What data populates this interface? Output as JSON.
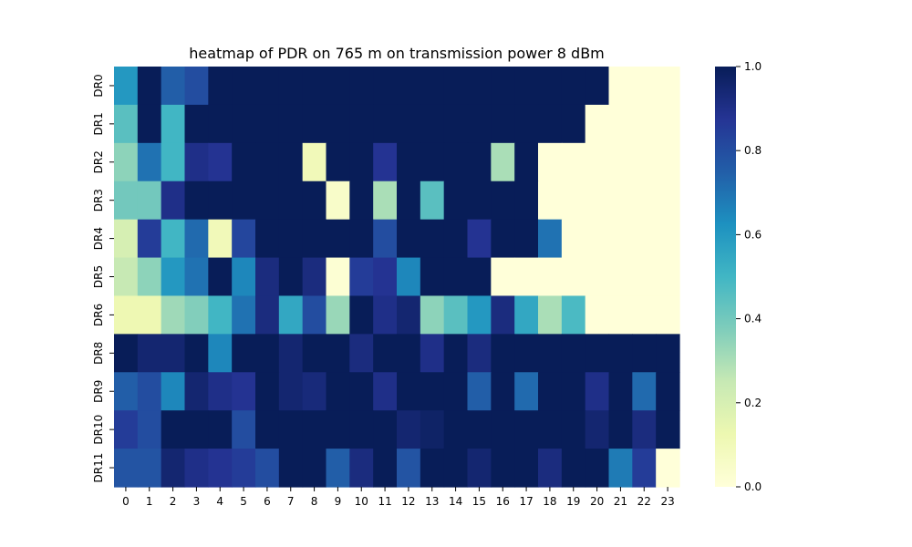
{
  "chart_data": {
    "type": "heatmap",
    "title": "heatmap of PDR on 765 m on transmission power 8 dBm",
    "xlabel": "",
    "ylabel": "",
    "x": [
      0,
      1,
      2,
      3,
      4,
      5,
      6,
      7,
      8,
      9,
      10,
      11,
      12,
      13,
      14,
      15,
      16,
      17,
      18,
      19,
      20,
      21,
      22,
      23
    ],
    "y": [
      "DR0",
      "DR1",
      "DR2",
      "DR3",
      "DR4",
      "DR5",
      "DR6",
      "DR8",
      "DR9",
      "DR10",
      "DR11"
    ],
    "values": [
      [
        0.6,
        1.0,
        0.75,
        0.8,
        1.0,
        1.0,
        1.0,
        1.0,
        1.0,
        1.0,
        1.0,
        1.0,
        1.0,
        1.0,
        1.0,
        1.0,
        1.0,
        1.0,
        1.0,
        1.0,
        1.0,
        0.0,
        0.0,
        0.0
      ],
      [
        0.45,
        1.0,
        0.5,
        1.0,
        1.0,
        1.0,
        1.0,
        1.0,
        1.0,
        1.0,
        1.0,
        1.0,
        1.0,
        1.0,
        1.0,
        1.0,
        1.0,
        1.0,
        1.0,
        1.0,
        0.0,
        0.0,
        0.0,
        0.0
      ],
      [
        0.35,
        0.7,
        0.5,
        0.9,
        0.88,
        1.0,
        1.0,
        1.0,
        0.1,
        1.0,
        1.0,
        0.88,
        1.0,
        1.0,
        1.0,
        1.0,
        0.3,
        1.0,
        0.0,
        0.0,
        0.0,
        0.0,
        0.0,
        0.0
      ],
      [
        0.4,
        0.4,
        0.9,
        1.0,
        1.0,
        1.0,
        1.0,
        1.0,
        1.0,
        0.05,
        1.0,
        0.3,
        1.0,
        0.45,
        1.0,
        1.0,
        1.0,
        1.0,
        0.0,
        0.0,
        0.0,
        0.0,
        0.0,
        0.0
      ],
      [
        0.2,
        0.85,
        0.5,
        0.72,
        0.1,
        0.82,
        1.0,
        1.0,
        1.0,
        1.0,
        1.0,
        0.8,
        1.0,
        1.0,
        1.0,
        0.88,
        1.0,
        1.0,
        0.7,
        0.0,
        0.0,
        0.0,
        0.0,
        0.0
      ],
      [
        0.25,
        0.35,
        0.6,
        0.7,
        1.0,
        0.65,
        0.92,
        1.0,
        0.92,
        0.02,
        0.85,
        0.88,
        0.65,
        1.0,
        1.0,
        1.0,
        0.0,
        0.0,
        0.0,
        0.0,
        0.0,
        0.0,
        0.0,
        0.0
      ],
      [
        0.12,
        0.12,
        0.32,
        0.37,
        0.5,
        0.7,
        0.92,
        0.55,
        0.8,
        0.33,
        1.0,
        0.9,
        0.95,
        0.35,
        0.45,
        0.6,
        0.92,
        0.55,
        0.3,
        0.48,
        0.0,
        0.0,
        0.0,
        0.0
      ],
      [
        1.0,
        0.95,
        0.95,
        1.0,
        0.65,
        1.0,
        1.0,
        0.95,
        1.0,
        1.0,
        0.92,
        1.0,
        1.0,
        0.9,
        1.0,
        0.92,
        1.0,
        1.0,
        1.0,
        1.0,
        1.0,
        1.0,
        1.0,
        1.0
      ],
      [
        0.75,
        0.8,
        0.65,
        0.95,
        0.9,
        0.88,
        1.0,
        0.95,
        0.93,
        1.0,
        1.0,
        0.9,
        1.0,
        1.0,
        1.0,
        0.75,
        1.0,
        0.72,
        1.0,
        1.0,
        0.9,
        1.0,
        0.72,
        1.0
      ],
      [
        0.85,
        0.8,
        1.0,
        1.0,
        1.0,
        0.8,
        1.0,
        1.0,
        1.0,
        1.0,
        1.0,
        1.0,
        0.95,
        0.97,
        1.0,
        1.0,
        1.0,
        1.0,
        1.0,
        1.0,
        0.95,
        1.0,
        0.92,
        1.0
      ],
      [
        0.78,
        0.78,
        0.95,
        0.9,
        0.88,
        0.85,
        0.8,
        1.0,
        1.0,
        0.75,
        0.92,
        1.0,
        0.78,
        1.0,
        1.0,
        0.95,
        1.0,
        1.0,
        0.92,
        1.0,
        1.0,
        0.68,
        0.85,
        0.0
      ]
    ],
    "colorbar": {
      "range": [
        0.0,
        1.0
      ],
      "ticks": [
        "0.0",
        "0.2",
        "0.4",
        "0.6",
        "0.8",
        "1.0"
      ],
      "colormap": "YlGnBu"
    },
    "grid": false,
    "legend": "colorbar-right"
  }
}
